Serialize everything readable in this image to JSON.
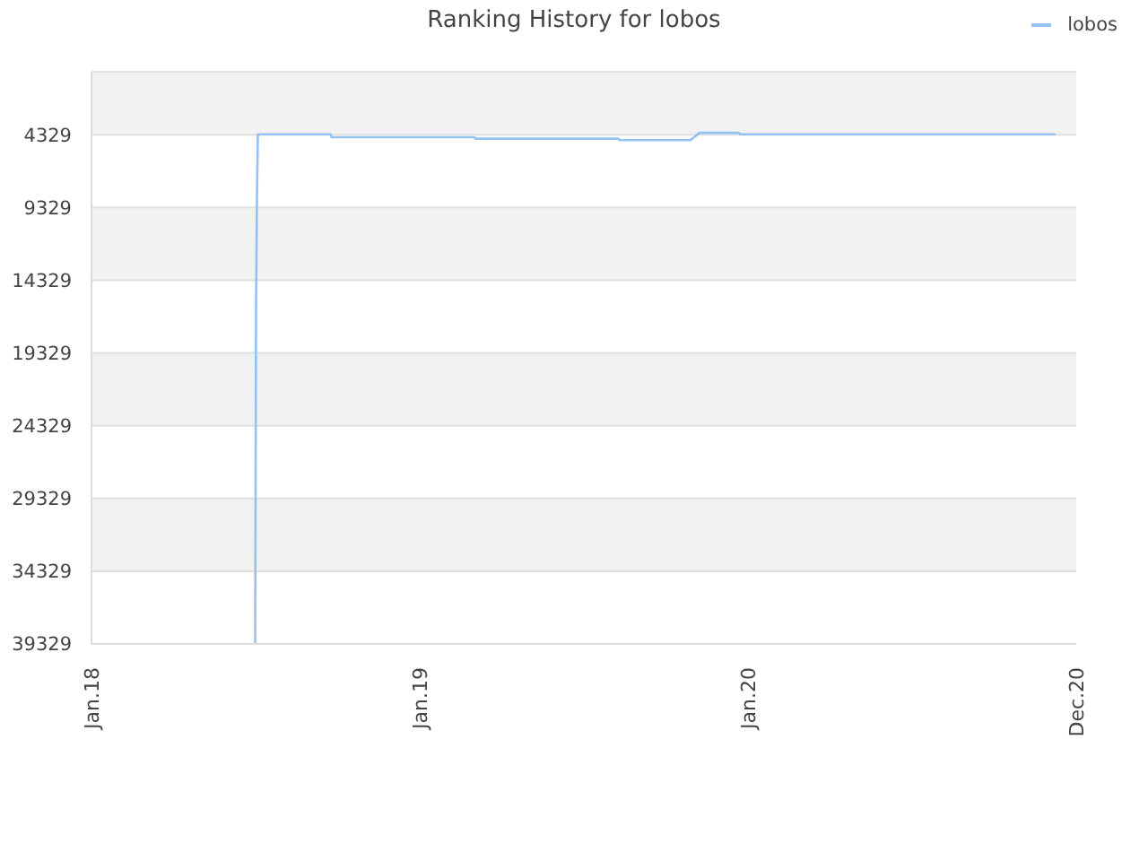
{
  "chart_data": {
    "type": "line",
    "title": "Ranking History for lobos",
    "x": [
      "2018-07-02",
      "2018-07-03",
      "2018-07-04",
      "2018-07-05",
      "2018-09-24",
      "2018-09-25",
      "2019-03-03",
      "2019-03-04",
      "2019-08-10",
      "2019-08-11",
      "2019-10-29",
      "2019-11-08",
      "2019-12-22",
      "2019-12-23",
      "2020-12-07"
    ],
    "series": [
      {
        "name": "lobos",
        "color": "#94c2f2",
        "values": [
          39300,
          16000,
          8600,
          4300,
          4300,
          4500,
          4500,
          4600,
          4600,
          4700,
          4700,
          4200,
          4200,
          4300,
          4300
        ]
      }
    ],
    "xlim": [
      "2018-01-01",
      "2020-12-31"
    ],
    "xticks": [
      {
        "value": "2018-01-01",
        "label": "Jan.18"
      },
      {
        "value": "2019-01-01",
        "label": "Jan.19"
      },
      {
        "value": "2020-01-01",
        "label": "Jan.20"
      },
      {
        "value": "2020-12-31",
        "label": "Dec.20"
      }
    ],
    "ylim": [
      39329,
      0
    ],
    "yticks": [
      4329,
      9329,
      14329,
      19329,
      24329,
      29329,
      34329,
      39329
    ],
    "grid": "y",
    "legend": "top right"
  }
}
